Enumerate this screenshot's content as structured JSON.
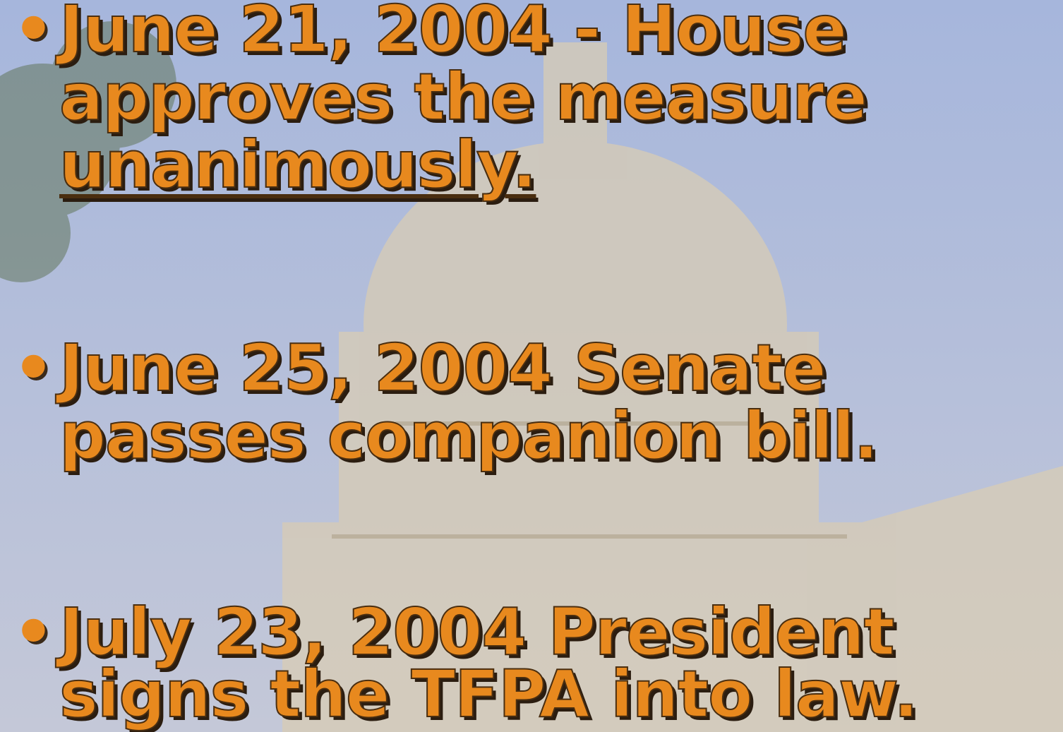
{
  "bullets": [
    {
      "lines": [
        "June 21, 2004 - House",
        "approves the measure",
        "unanimously."
      ]
    },
    {
      "lines": [
        "June 25, 2004 Senate",
        "passes companion bill."
      ]
    },
    {
      "lines": [
        "July 23, 2004 President",
        "signs the TFPA into law."
      ]
    }
  ]
}
